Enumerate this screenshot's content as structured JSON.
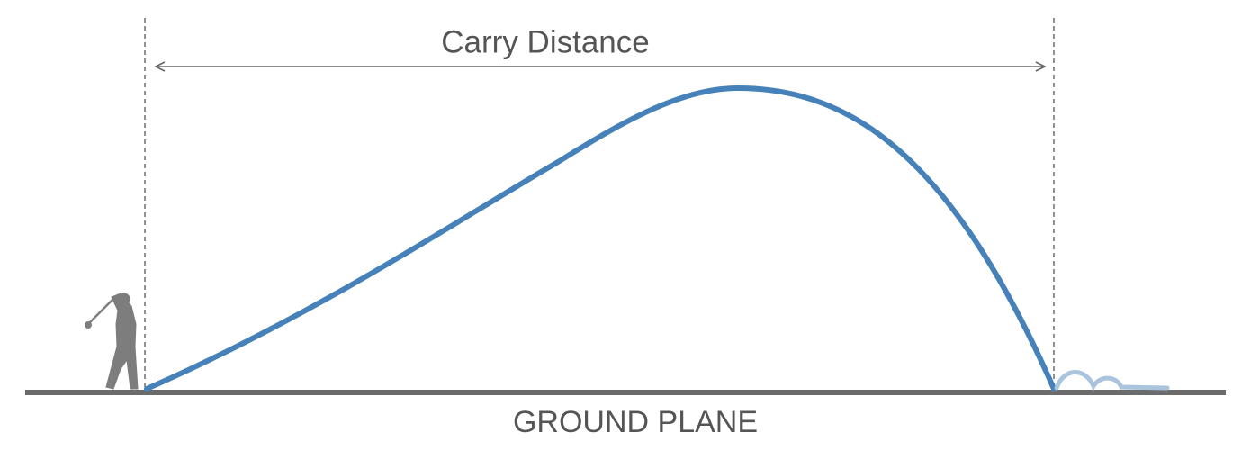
{
  "diagram": {
    "carry_label": "Carry Distance",
    "ground_label": "GROUND PLANE"
  }
}
